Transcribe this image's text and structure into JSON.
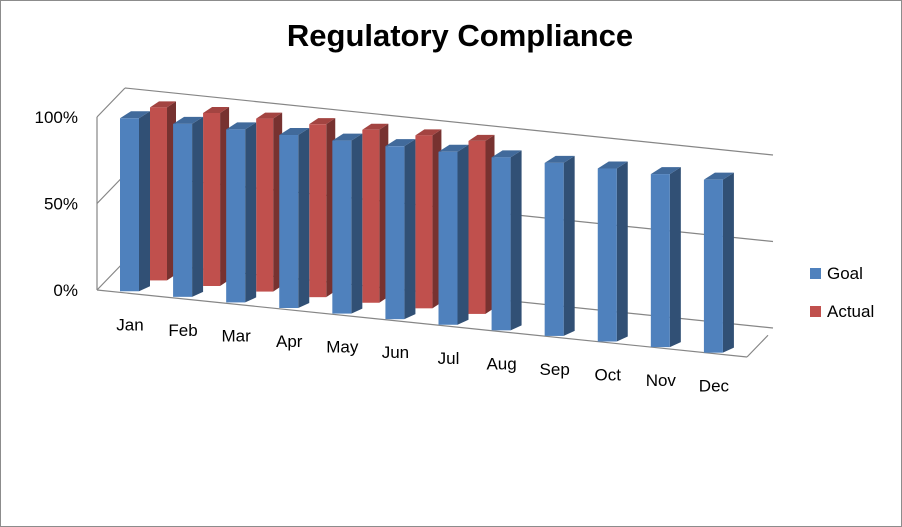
{
  "chart_data": {
    "type": "bar",
    "title": "Regulatory Compliance",
    "categories": [
      "Jan",
      "Feb",
      "Mar",
      "Apr",
      "May",
      "Jun",
      "Jul",
      "Aug",
      "Sep",
      "Oct",
      "Nov",
      "Dec"
    ],
    "series": [
      {
        "name": "Goal",
        "values": [
          100,
          100,
          100,
          100,
          100,
          100,
          100,
          100,
          100,
          100,
          100,
          100
        ]
      },
      {
        "name": "Actual",
        "values": [
          100,
          100,
          100,
          100,
          100,
          100,
          100,
          null,
          null,
          null,
          null,
          null
        ]
      }
    ],
    "yticks": [
      "0%",
      "50%",
      "100%"
    ],
    "ylim": [
      0,
      100
    ],
    "legend_position": "right",
    "colors": {
      "Goal": "#4f81bd",
      "Actual": "#c0504d"
    },
    "style": "3d-column"
  }
}
